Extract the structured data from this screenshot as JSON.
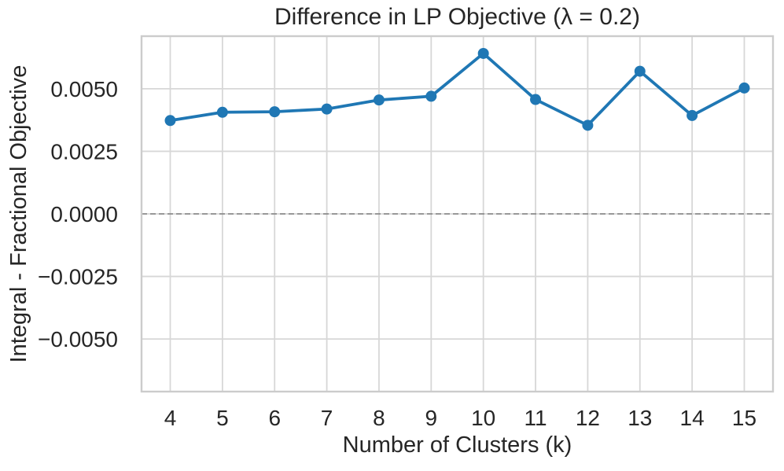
{
  "chart_data": {
    "type": "line",
    "title": "Difference in LP Objective (λ = 0.2)",
    "xlabel": "Number of Clusters (k)",
    "ylabel": "Integral - Fractional Objective",
    "x": [
      4,
      5,
      6,
      7,
      8,
      9,
      10,
      11,
      12,
      13,
      14,
      15
    ],
    "series": [
      {
        "name": "integral-minus-fractional-objective",
        "values": [
          0.00373,
          0.00406,
          0.00408,
          0.00419,
          0.00455,
          0.0047,
          0.00641,
          0.00457,
          0.00354,
          0.0057,
          0.00393,
          0.00503
        ],
        "color": "#1f77b4",
        "marker": "circle"
      }
    ],
    "xlim": [
      3.45,
      15.55
    ],
    "ylim": [
      -0.0071,
      0.0071
    ],
    "xticks": [
      4,
      5,
      6,
      7,
      8,
      9,
      10,
      11,
      12,
      13,
      14,
      15
    ],
    "xtick_labels": [
      "4",
      "5",
      "6",
      "7",
      "8",
      "9",
      "10",
      "11",
      "12",
      "13",
      "14",
      "15"
    ],
    "yticks": [
      0.005,
      0.0025,
      0.0,
      -0.0025,
      -0.005
    ],
    "ytick_labels": [
      "0.0050",
      "0.0025",
      "0.0000",
      "−0.0025",
      "−0.0050"
    ],
    "grid": true,
    "legend": "none",
    "annotations": [
      {
        "type": "hline",
        "y": 0.0,
        "style": "dashed",
        "color": "#808080"
      }
    ],
    "colors": {
      "line": "#1f77b4",
      "grid": "#d7d7d7",
      "spine": "#cccccc",
      "zero_line": "#808080",
      "text": "#262626",
      "background": "#ffffff"
    }
  }
}
